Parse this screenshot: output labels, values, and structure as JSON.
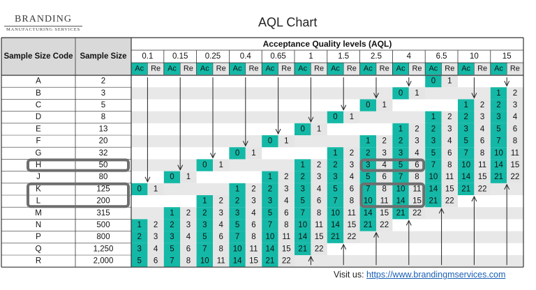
{
  "brand": {
    "name": "BRANDING",
    "subtitle": "MANUFACTURING SERVICES"
  },
  "title": "AQL Chart",
  "header": {
    "group": "Acceptance Quality levels (AQL)",
    "code_col": "Sample Size Code",
    "size_col": "Sample Size",
    "ac": "Ac",
    "re": "Re"
  },
  "aql_levels": [
    "0.1",
    "0.15",
    "0.25",
    "0.4",
    "0.65",
    "1",
    "1.5",
    "2.5",
    "4",
    "6.5",
    "10",
    "15"
  ],
  "rows": [
    {
      "code": "A",
      "size": "2"
    },
    {
      "code": "B",
      "size": "3"
    },
    {
      "code": "C",
      "size": "5"
    },
    {
      "code": "D",
      "size": "8"
    },
    {
      "code": "E",
      "size": "13"
    },
    {
      "code": "F",
      "size": "20"
    },
    {
      "code": "G",
      "size": "32"
    },
    {
      "code": "H",
      "size": "50"
    },
    {
      "code": "J",
      "size": "80"
    },
    {
      "code": "K",
      "size": "125"
    },
    {
      "code": "L",
      "size": "200"
    },
    {
      "code": "M",
      "size": "315"
    },
    {
      "code": "N",
      "size": "500"
    },
    {
      "code": "P",
      "size": "800"
    },
    {
      "code": "Q",
      "size": "1,250"
    },
    {
      "code": "R",
      "size": "2,000"
    }
  ],
  "highlighted_rows": [
    "H",
    "K",
    "L"
  ],
  "accept_reject": [
    [
      null,
      null,
      null,
      null,
      null,
      null,
      null,
      null,
      null,
      [
        0,
        1
      ],
      null,
      null
    ],
    [
      null,
      null,
      null,
      null,
      null,
      null,
      null,
      null,
      [
        0,
        1
      ],
      null,
      null,
      [
        1,
        2
      ]
    ],
    [
      null,
      null,
      null,
      null,
      null,
      null,
      null,
      [
        0,
        1
      ],
      null,
      null,
      [
        1,
        2
      ],
      [
        2,
        3
      ]
    ],
    [
      null,
      null,
      null,
      null,
      null,
      null,
      [
        0,
        1
      ],
      null,
      null,
      [
        1,
        2
      ],
      [
        2,
        3
      ],
      [
        3,
        4
      ]
    ],
    [
      null,
      null,
      null,
      null,
      null,
      [
        0,
        1
      ],
      null,
      null,
      [
        1,
        2
      ],
      [
        2,
        3
      ],
      [
        3,
        4
      ],
      [
        5,
        6
      ]
    ],
    [
      null,
      null,
      null,
      null,
      [
        0,
        1
      ],
      null,
      null,
      [
        1,
        2
      ],
      [
        2,
        3
      ],
      [
        3,
        4
      ],
      [
        5,
        6
      ],
      [
        7,
        8
      ]
    ],
    [
      null,
      null,
      null,
      [
        0,
        1
      ],
      null,
      null,
      [
        1,
        2
      ],
      [
        2,
        3
      ],
      [
        3,
        4
      ],
      [
        5,
        6
      ],
      [
        7,
        8
      ],
      [
        10,
        11
      ]
    ],
    [
      null,
      null,
      [
        0,
        1
      ],
      null,
      null,
      [
        1,
        2
      ],
      [
        2,
        3
      ],
      [
        3,
        4
      ],
      [
        5,
        6
      ],
      [
        7,
        8
      ],
      [
        10,
        11
      ],
      [
        14,
        15
      ]
    ],
    [
      null,
      [
        0,
        1
      ],
      null,
      null,
      [
        1,
        2
      ],
      [
        2,
        3
      ],
      [
        3,
        4
      ],
      [
        5,
        6
      ],
      [
        7,
        8
      ],
      [
        10,
        11
      ],
      [
        14,
        15
      ],
      [
        21,
        22
      ]
    ],
    [
      [
        0,
        1
      ],
      null,
      null,
      [
        1,
        2
      ],
      [
        2,
        3
      ],
      [
        3,
        4
      ],
      [
        5,
        6
      ],
      [
        7,
        8
      ],
      [
        10,
        11
      ],
      [
        14,
        15
      ],
      [
        21,
        22
      ],
      null
    ],
    [
      null,
      null,
      [
        1,
        2
      ],
      [
        2,
        3
      ],
      [
        3,
        4
      ],
      [
        5,
        6
      ],
      [
        7,
        8
      ],
      [
        10,
        11
      ],
      [
        14,
        15
      ],
      [
        21,
        22
      ],
      null,
      null
    ],
    [
      null,
      [
        1,
        2
      ],
      [
        2,
        3
      ],
      [
        3,
        4
      ],
      [
        5,
        6
      ],
      [
        7,
        8
      ],
      [
        10,
        11
      ],
      [
        14,
        15
      ],
      [
        21,
        22
      ],
      null,
      null,
      null
    ],
    [
      [
        1,
        2
      ],
      [
        2,
        3
      ],
      [
        3,
        4
      ],
      [
        5,
        6
      ],
      [
        7,
        8
      ],
      [
        10,
        11
      ],
      [
        14,
        15
      ],
      [
        21,
        22
      ],
      null,
      null,
      null,
      null
    ],
    [
      [
        2,
        3
      ],
      [
        3,
        4
      ],
      [
        5,
        6
      ],
      [
        7,
        8
      ],
      [
        10,
        11
      ],
      [
        14,
        15
      ],
      [
        21,
        22
      ],
      null,
      null,
      null,
      null,
      null
    ],
    [
      [
        3,
        4
      ],
      [
        5,
        6
      ],
      [
        7,
        8
      ],
      [
        10,
        11
      ],
      [
        14,
        15
      ],
      [
        21,
        22
      ],
      null,
      null,
      null,
      null,
      null,
      null
    ],
    [
      [
        5,
        6
      ],
      [
        7,
        8
      ],
      [
        10,
        11
      ],
      [
        14,
        15
      ],
      [
        21,
        22
      ],
      null,
      null,
      null,
      null,
      null,
      null,
      null
    ]
  ],
  "colors": {
    "ac_fill": "#14b8a6",
    "re_fill": "#e5e5e5",
    "header_fill": "#d9d9d9",
    "stripe_fill": "#e8e8e8",
    "highlight_border": "#6e6e6e"
  },
  "footer": {
    "label": "Visit us:",
    "link": "https://www.brandingmservices.com"
  }
}
